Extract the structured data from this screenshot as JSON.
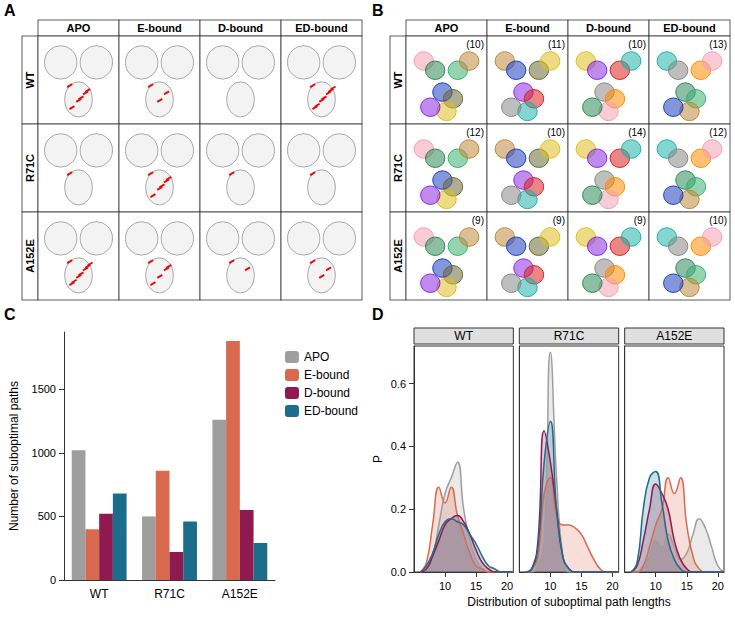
{
  "panels": [
    {
      "label": "A",
      "type": "structure_grid",
      "columns": [
        "APO",
        "E-bound",
        "D-bound",
        "ED-bound"
      ],
      "rows": [
        "WT",
        "R71C",
        "A152E"
      ]
    },
    {
      "label": "B",
      "type": "network_grid",
      "columns": [
        "APO",
        "E-bound",
        "D-bound",
        "ED-bound"
      ],
      "rows": [
        "WT",
        "R71C",
        "A152E"
      ],
      "communities": [
        [
          "(10)",
          "(11)",
          "(10)",
          "(13)"
        ],
        [
          "(12)",
          "(10)",
          "(14)",
          "(12)"
        ],
        [
          "(9)",
          "(9)",
          "(9)",
          "(10)"
        ]
      ]
    }
  ],
  "chart_data": [
    {
      "label": "C",
      "type": "bar",
      "categories": [
        "WT",
        "R71C",
        "A152E"
      ],
      "y_label": "Number of suboptimal paths",
      "ylim": [
        0,
        1950
      ],
      "yticks": [
        0,
        500,
        1000,
        1500
      ],
      "grid": false,
      "legend": "right",
      "series": [
        {
          "name": "APO",
          "color": "#9e9e9e",
          "values": [
            1020,
            500,
            1260
          ]
        },
        {
          "name": "E-bound",
          "color": "#d9694f",
          "values": [
            400,
            860,
            1880
          ]
        },
        {
          "name": "D-bound",
          "color": "#8e1a4f",
          "values": [
            520,
            220,
            550
          ]
        },
        {
          "name": "ED-bound",
          "color": "#1c6c8c",
          "values": [
            680,
            460,
            290
          ]
        }
      ]
    },
    {
      "label": "D",
      "type": "area",
      "x_label": "Distribution of suboptimal path lengths",
      "y_label": "P",
      "xlim": [
        5,
        21
      ],
      "xticks": [
        10,
        15,
        20
      ],
      "ylim": [
        0,
        0.72
      ],
      "yticks": [
        {
          "value": 0,
          "label": "0.0"
        },
        {
          "value": 0.2,
          "label": "0.2"
        },
        {
          "value": 0.4,
          "label": "0.4"
        },
        {
          "value": 0.6,
          "label": "0.6"
        }
      ],
      "grid": false,
      "x": [
        6,
        7,
        8,
        9,
        10,
        11,
        12,
        13,
        14,
        15,
        16,
        17,
        18,
        19,
        20,
        21
      ],
      "facets": [
        {
          "title": "WT",
          "series": [
            {
              "name": "APO",
              "color": "#9e9e9e",
              "values": [
                0,
                0.01,
                0.05,
                0.15,
                0.25,
                0.3,
                0.35,
                0.2,
                0.1,
                0.04,
                0.01,
                0,
                0,
                0,
                0,
                0
              ]
            },
            {
              "name": "E-bound",
              "color": "#d9694f",
              "values": [
                0,
                0.03,
                0.15,
                0.27,
                0.22,
                0.27,
                0.18,
                0.12,
                0.06,
                0.02,
                0.01,
                0,
                0,
                0,
                0,
                0
              ]
            },
            {
              "name": "D-bound",
              "color": "#8e1a4f",
              "values": [
                0,
                0.01,
                0.05,
                0.1,
                0.15,
                0.17,
                0.18,
                0.16,
                0.12,
                0.07,
                0.03,
                0.01,
                0,
                0,
                0,
                0
              ]
            },
            {
              "name": "ED-bound",
              "color": "#1c6c8c",
              "values": [
                0,
                0.02,
                0.06,
                0.12,
                0.16,
                0.17,
                0.16,
                0.15,
                0.12,
                0.09,
                0.05,
                0.02,
                0.01,
                0,
                0,
                0
              ]
            }
          ]
        },
        {
          "title": "R71C",
          "series": [
            {
              "name": "APO",
              "color": "#9e9e9e",
              "values": [
                0,
                0,
                0.02,
                0.1,
                0.7,
                0.3,
                0.05,
                0,
                0,
                0,
                0,
                0,
                0,
                0,
                0,
                0
              ]
            },
            {
              "name": "E-bound",
              "color": "#d9694f",
              "values": [
                0,
                0.01,
                0.05,
                0.25,
                0.3,
                0.18,
                0.15,
                0.15,
                0.14,
                0.12,
                0.08,
                0.04,
                0.01,
                0,
                0,
                0
              ]
            },
            {
              "name": "D-bound",
              "color": "#8e1a4f",
              "values": [
                0,
                0.01,
                0.1,
                0.45,
                0.35,
                0.2,
                0.05,
                0.01,
                0,
                0,
                0,
                0,
                0,
                0,
                0,
                0
              ]
            },
            {
              "name": "ED-bound",
              "color": "#1c6c8c",
              "values": [
                0,
                0.01,
                0.08,
                0.35,
                0.48,
                0.2,
                0.05,
                0.01,
                0,
                0,
                0,
                0,
                0,
                0,
                0,
                0
              ]
            }
          ]
        },
        {
          "title": "A152E",
          "series": [
            {
              "name": "APO",
              "color": "#9e9e9e",
              "values": [
                0,
                0,
                0.02,
                0.05,
                0.1,
                0.08,
                0.12,
                0.08,
                0.04,
                0.06,
                0.12,
                0.17,
                0.14,
                0.08,
                0.02,
                0
              ]
            },
            {
              "name": "E-bound",
              "color": "#d9694f",
              "values": [
                0,
                0,
                0.02,
                0.08,
                0.15,
                0.2,
                0.3,
                0.25,
                0.3,
                0.15,
                0.05,
                0.01,
                0,
                0,
                0,
                0
              ]
            },
            {
              "name": "D-bound",
              "color": "#8e1a4f",
              "values": [
                0,
                0.02,
                0.1,
                0.2,
                0.28,
                0.25,
                0.2,
                0.1,
                0.04,
                0.01,
                0,
                0,
                0,
                0,
                0,
                0
              ]
            },
            {
              "name": "ED-bound",
              "color": "#1c6c8c",
              "values": [
                0,
                0.03,
                0.2,
                0.3,
                0.32,
                0.22,
                0.1,
                0.04,
                0.01,
                0,
                0,
                0,
                0,
                0,
                0,
                0
              ]
            }
          ]
        }
      ]
    }
  ]
}
